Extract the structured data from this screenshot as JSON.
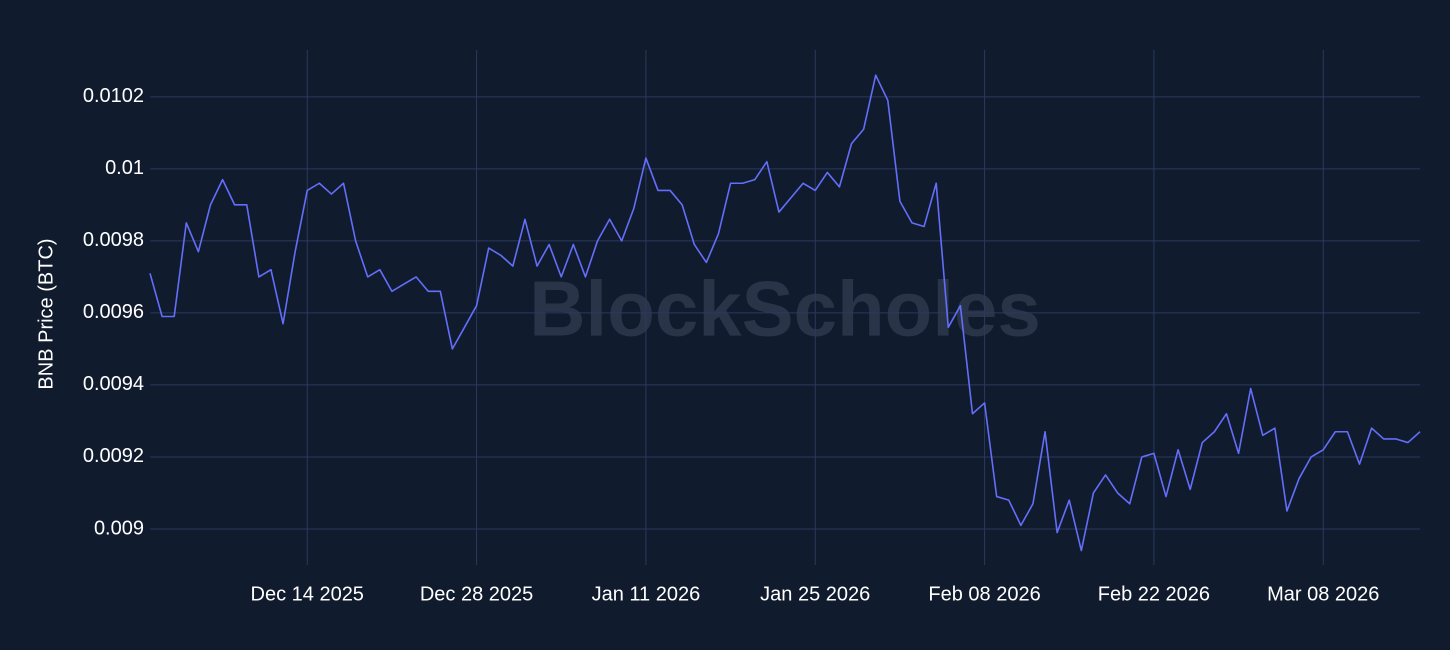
{
  "chart_data": {
    "type": "line",
    "y_label": "BNB Price (BTC)",
    "watermark": "BlockScholes",
    "x": [
      "2025-12-01",
      "2025-12-02",
      "2025-12-03",
      "2025-12-04",
      "2025-12-05",
      "2025-12-06",
      "2025-12-07",
      "2025-12-08",
      "2025-12-09",
      "2025-12-10",
      "2025-12-11",
      "2025-12-12",
      "2025-12-13",
      "2025-12-14",
      "2025-12-15",
      "2025-12-16",
      "2025-12-17",
      "2025-12-18",
      "2025-12-19",
      "2025-12-20",
      "2025-12-21",
      "2025-12-22",
      "2025-12-23",
      "2025-12-24",
      "2025-12-25",
      "2025-12-26",
      "2025-12-27",
      "2025-12-28",
      "2025-12-29",
      "2025-12-30",
      "2025-12-31",
      "2026-01-01",
      "2026-01-02",
      "2026-01-03",
      "2026-01-04",
      "2026-01-05",
      "2026-01-06",
      "2026-01-07",
      "2026-01-08",
      "2026-01-09",
      "2026-01-10",
      "2026-01-11",
      "2026-01-12",
      "2026-01-13",
      "2026-01-14",
      "2026-01-15",
      "2026-01-16",
      "2026-01-17",
      "2026-01-18",
      "2026-01-19",
      "2026-01-20",
      "2026-01-21",
      "2026-01-22",
      "2026-01-23",
      "2026-01-24",
      "2026-01-25",
      "2026-01-26",
      "2026-01-27",
      "2026-01-28",
      "2026-01-29",
      "2026-01-30",
      "2026-01-31",
      "2026-02-01",
      "2026-02-02",
      "2026-02-03",
      "2026-02-04",
      "2026-02-05",
      "2026-02-06",
      "2026-02-07",
      "2026-02-08",
      "2026-02-09",
      "2026-02-10",
      "2026-02-11",
      "2026-02-12",
      "2026-02-13",
      "2026-02-14",
      "2026-02-15",
      "2026-02-16",
      "2026-02-17",
      "2026-02-18",
      "2026-02-19",
      "2026-02-20",
      "2026-02-21",
      "2026-02-22",
      "2026-02-23",
      "2026-02-24",
      "2026-02-25",
      "2026-02-26",
      "2026-02-27",
      "2026-02-28",
      "2026-03-01",
      "2026-03-02",
      "2026-03-03",
      "2026-03-04",
      "2026-03-05",
      "2026-03-06",
      "2026-03-07",
      "2026-03-08",
      "2026-03-09",
      "2026-03-10",
      "2026-03-11",
      "2026-03-12",
      "2026-03-13",
      "2026-03-14",
      "2026-03-15",
      "2026-03-16"
    ],
    "series": [
      {
        "color": "#636efa",
        "values": [
          0.00971,
          0.00959,
          0.00959,
          0.00985,
          0.00977,
          0.0099,
          0.00997,
          0.0099,
          0.0099,
          0.0097,
          0.00972,
          0.00957,
          0.00977,
          0.00994,
          0.00996,
          0.00993,
          0.00996,
          0.0098,
          0.0097,
          0.00972,
          0.00966,
          0.00968,
          0.0097,
          0.00966,
          0.00966,
          0.0095,
          0.00956,
          0.00962,
          0.00978,
          0.00976,
          0.00973,
          0.00986,
          0.00973,
          0.00979,
          0.0097,
          0.00979,
          0.0097,
          0.0098,
          0.00986,
          0.0098,
          0.00989,
          0.01003,
          0.00994,
          0.00994,
          0.0099,
          0.00979,
          0.00974,
          0.00982,
          0.00996,
          0.00996,
          0.00997,
          0.01002,
          0.00988,
          0.00992,
          0.00996,
          0.00994,
          0.00999,
          0.00995,
          0.01007,
          0.01011,
          0.01026,
          0.01019,
          0.00991,
          0.00985,
          0.00984,
          0.00996,
          0.00956,
          0.00962,
          0.00932,
          0.00935,
          0.00909,
          0.00908,
          0.00901,
          0.00907,
          0.00927,
          0.00899,
          0.00908,
          0.00894,
          0.0091,
          0.00915,
          0.0091,
          0.00907,
          0.0092,
          0.00921,
          0.00909,
          0.00922,
          0.00911,
          0.00924,
          0.00927,
          0.00932,
          0.00921,
          0.00939,
          0.00926,
          0.00928,
          0.00905,
          0.00914,
          0.0092,
          0.00922,
          0.00927,
          0.00927,
          0.00918,
          0.00928,
          0.00925,
          0.00925,
          0.00924,
          0.00927
        ]
      }
    ],
    "xlim": [
      "2025-12-01",
      "2026-03-16"
    ],
    "xticks": [
      {
        "value": "2025-12-14",
        "label": "Dec 14 2025"
      },
      {
        "value": "2025-12-28",
        "label": "Dec 28 2025"
      },
      {
        "value": "2026-01-11",
        "label": "Jan 11 2026"
      },
      {
        "value": "2026-01-25",
        "label": "Jan 25 2026"
      },
      {
        "value": "2026-02-08",
        "label": "Feb 08 2026"
      },
      {
        "value": "2026-02-22",
        "label": "Feb 22 2026"
      },
      {
        "value": "2026-03-08",
        "label": "Mar 08 2026"
      }
    ],
    "ylim": [
      0.0089,
      0.01033
    ],
    "yticks": [
      0.009,
      0.0092,
      0.0094,
      0.0096,
      0.0098,
      0.01,
      0.0102
    ],
    "grid": true
  }
}
